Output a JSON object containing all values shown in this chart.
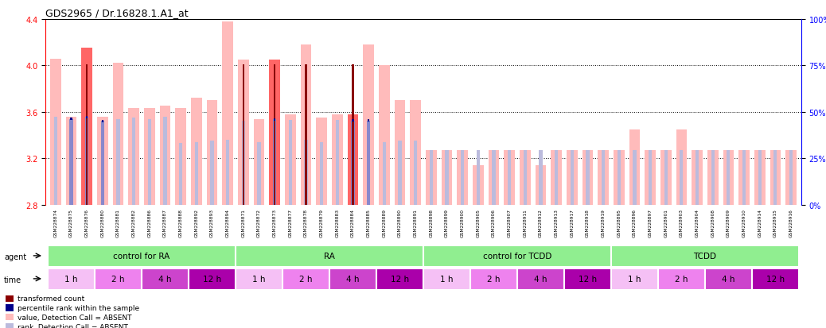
{
  "title": "GDS2965 / Dr.16828.1.A1_at",
  "ylim_left": [
    2.8,
    4.4
  ],
  "ylim_right": [
    0,
    100
  ],
  "yticks_left": [
    2.8,
    3.2,
    3.6,
    4.0,
    4.4
  ],
  "yticks_right": [
    0,
    25,
    50,
    75,
    100
  ],
  "ytick_labels_right": [
    "0%",
    "25%",
    "50%",
    "75%",
    "100%"
  ],
  "hlines": [
    3.2,
    3.6,
    4.0
  ],
  "samples": [
    "GSM228874",
    "GSM228875",
    "GSM228876",
    "GSM228880",
    "GSM228881",
    "GSM228882",
    "GSM228886",
    "GSM228887",
    "GSM228888",
    "GSM228892",
    "GSM228893",
    "GSM228894",
    "GSM228871",
    "GSM228872",
    "GSM228873",
    "GSM228877",
    "GSM228878",
    "GSM228879",
    "GSM228883",
    "GSM228884",
    "GSM228885",
    "GSM228889",
    "GSM228890",
    "GSM228891",
    "GSM228898",
    "GSM228899",
    "GSM228900",
    "GSM228905",
    "GSM228906",
    "GSM228907",
    "GSM228911",
    "GSM228912",
    "GSM228913",
    "GSM228917",
    "GSM228918",
    "GSM228919",
    "GSM228895",
    "GSM228896",
    "GSM228897",
    "GSM228901",
    "GSM228903",
    "GSM228904",
    "GSM228908",
    "GSM228909",
    "GSM228910",
    "GSM228914",
    "GSM228915",
    "GSM228916"
  ],
  "value_bars": [
    4.06,
    3.56,
    4.15,
    3.56,
    4.02,
    3.63,
    3.63,
    3.65,
    3.63,
    3.72,
    3.7,
    4.38,
    4.05,
    3.54,
    4.05,
    3.58,
    4.18,
    3.55,
    3.58,
    3.58,
    4.18,
    4.0,
    3.7,
    3.7,
    3.27,
    3.27,
    3.27,
    3.14,
    3.27,
    3.27,
    3.27,
    3.14,
    3.27,
    3.27,
    3.27,
    3.27,
    3.27,
    3.45,
    3.27,
    3.27,
    3.45,
    3.27,
    3.27,
    3.27,
    3.27,
    3.27,
    3.27,
    3.27
  ],
  "value_absent": [
    true,
    true,
    false,
    true,
    true,
    true,
    true,
    true,
    true,
    true,
    true,
    true,
    true,
    true,
    false,
    true,
    true,
    true,
    true,
    false,
    true,
    true,
    true,
    true,
    true,
    true,
    true,
    true,
    true,
    true,
    true,
    true,
    true,
    true,
    true,
    true,
    true,
    true,
    true,
    true,
    true,
    true,
    true,
    true,
    true,
    true,
    true,
    true
  ],
  "rank_bars": [
    3.56,
    3.54,
    3.555,
    3.52,
    3.54,
    3.55,
    3.54,
    3.56,
    3.33,
    3.34,
    3.35,
    3.36,
    3.52,
    3.34,
    3.535,
    3.53,
    3.36,
    3.34,
    3.53,
    3.525,
    3.525,
    3.34,
    3.35,
    3.35,
    3.27,
    3.27,
    3.27,
    3.27,
    3.27,
    3.27,
    3.27,
    3.27,
    3.27,
    3.27,
    3.27,
    3.27,
    3.27,
    3.27,
    3.27,
    3.27,
    3.27,
    3.27,
    3.27,
    3.27,
    3.27,
    3.27,
    3.27,
    3.27
  ],
  "rank_absent": [
    true,
    false,
    false,
    false,
    true,
    true,
    true,
    true,
    true,
    true,
    true,
    true,
    true,
    true,
    false,
    true,
    true,
    true,
    true,
    false,
    false,
    true,
    true,
    true,
    true,
    true,
    true,
    true,
    true,
    true,
    true,
    true,
    true,
    true,
    true,
    true,
    true,
    true,
    true,
    true,
    true,
    true,
    true,
    true,
    true,
    true,
    true,
    true
  ],
  "transformed_count": [
    null,
    null,
    4.01,
    null,
    null,
    null,
    null,
    null,
    null,
    null,
    null,
    null,
    4.01,
    null,
    4.01,
    null,
    4.01,
    null,
    null,
    4.01,
    null,
    null,
    null,
    null,
    null,
    null,
    null,
    null,
    null,
    null,
    null,
    null,
    null,
    null,
    null,
    null,
    null,
    null,
    null,
    null,
    null,
    null,
    null,
    null,
    null,
    null,
    null,
    null
  ],
  "percentile_rank": [
    null,
    3.54,
    3.555,
    3.52,
    null,
    null,
    null,
    null,
    null,
    null,
    null,
    null,
    null,
    null,
    3.535,
    null,
    null,
    null,
    null,
    3.525,
    3.525,
    null,
    null,
    null,
    null,
    null,
    null,
    null,
    null,
    null,
    null,
    null,
    null,
    null,
    null,
    null,
    null,
    null,
    null,
    null,
    null,
    null,
    null,
    null,
    null,
    null,
    null,
    null
  ],
  "color_value_absent": "#FFBBBB",
  "color_value_present": "#FF6666",
  "color_rank_absent": "#BBBBDD",
  "color_rank_present": "#8888CC",
  "color_transformed": "#8B0000",
  "color_percentile": "#00008B",
  "time_shades": [
    "#F5C0F5",
    "#EE82EE",
    "#CC44CC",
    "#AA00AA",
    "#F5C0F5",
    "#EE82EE",
    "#CC44CC",
    "#AA00AA",
    "#F5C0F5",
    "#EE82EE",
    "#CC44CC",
    "#AA00AA",
    "#F5C0F5",
    "#EE82EE",
    "#CC44CC",
    "#AA00AA"
  ],
  "agent_color": "#90EE90",
  "legend_items": [
    {
      "color": "#8B0000",
      "label": "transformed count"
    },
    {
      "color": "#00008B",
      "label": "percentile rank within the sample"
    },
    {
      "color": "#FFBBBB",
      "label": "value, Detection Call = ABSENT"
    },
    {
      "color": "#BBBBDD",
      "label": "rank, Detection Call = ABSENT"
    }
  ]
}
